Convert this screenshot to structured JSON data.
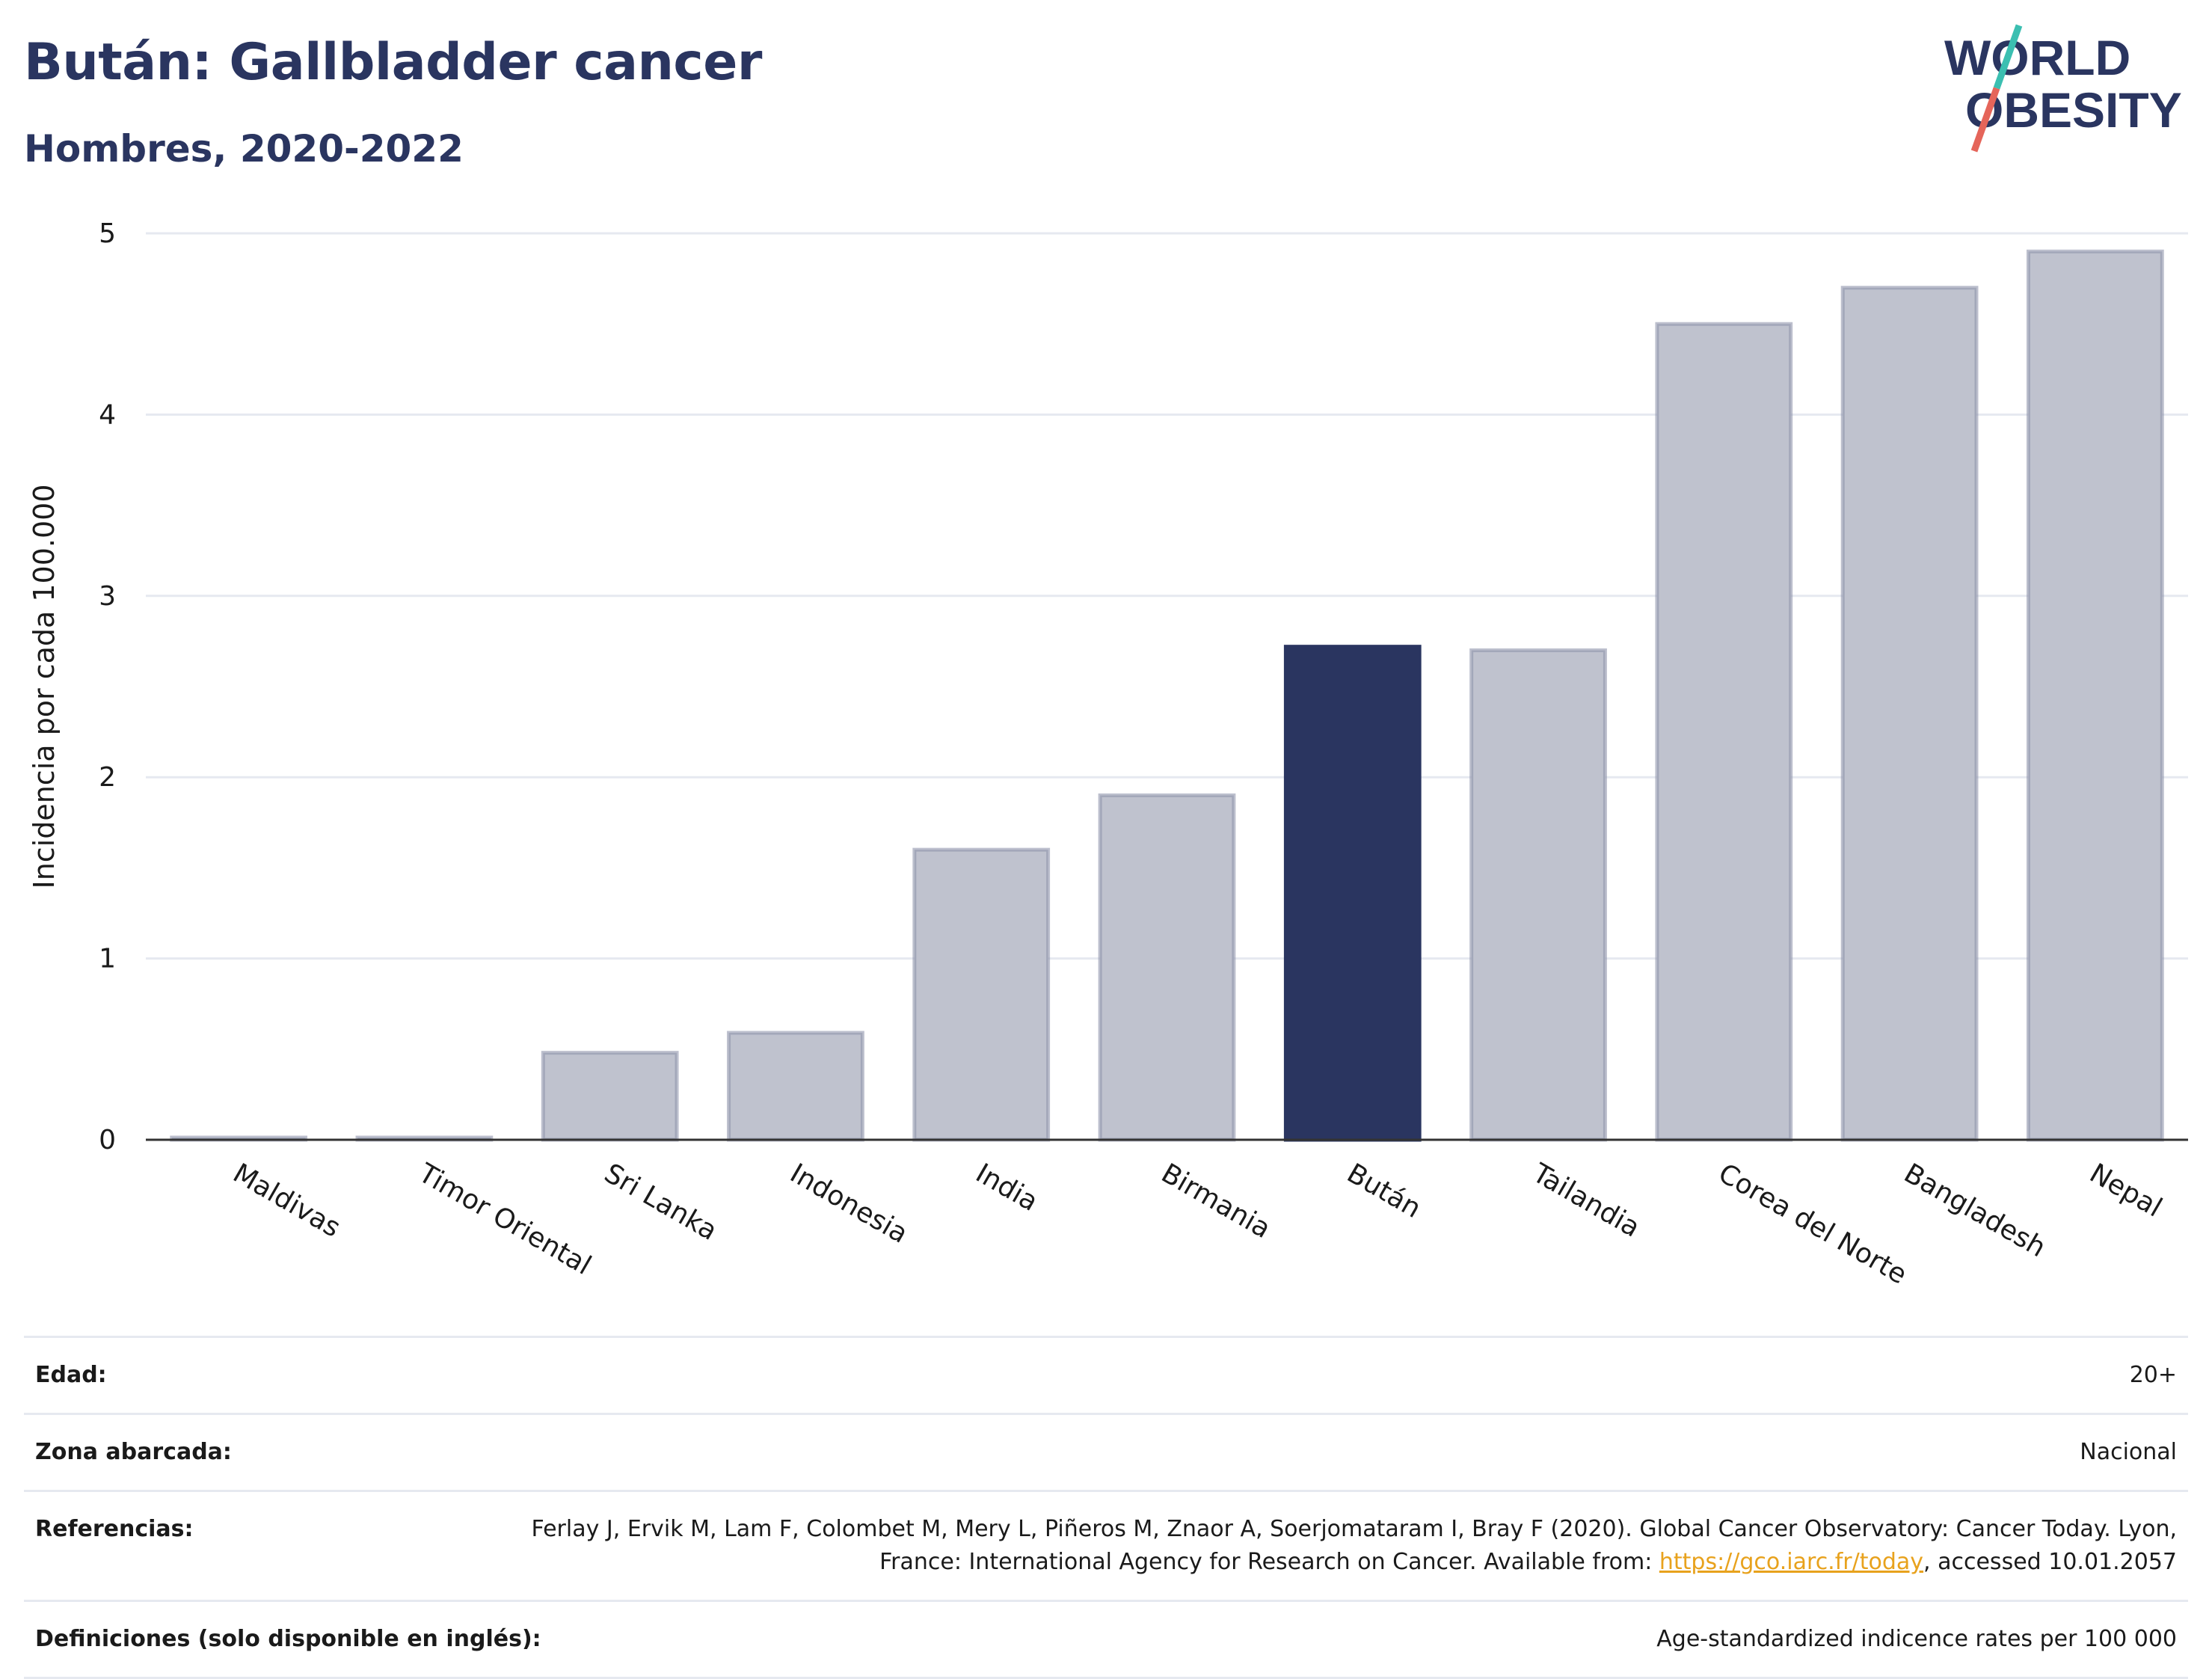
{
  "header": {
    "title": "Bután: Gallbladder cancer",
    "subtitle": "Hombres, 2020-2022"
  },
  "logo": {
    "line1": "WORLD",
    "line2": "OBESITY",
    "slash_colors": [
      "#3bbfb1",
      "#e5655a"
    ]
  },
  "chart_data": {
    "type": "bar",
    "title": "Bután: Gallbladder cancer",
    "subtitle": "Hombres, 2020-2022",
    "ylabel": "Incidencia por cada 100.000",
    "xlabel": "",
    "ylim": [
      0,
      5
    ],
    "yticks": [
      0,
      1,
      2,
      3,
      4,
      5
    ],
    "grid": true,
    "categories": [
      "Maldivas",
      "Timor Oriental",
      "Sri Lanka",
      "Indonesia",
      "India",
      "Birmania",
      "Bután",
      "Tailandia",
      "Corea del Norte",
      "Bangladesh",
      "Nepal"
    ],
    "values": [
      0.01,
      0.01,
      0.48,
      0.59,
      1.6,
      1.9,
      2.72,
      2.7,
      4.5,
      4.7,
      4.9
    ],
    "highlight": "Bután",
    "colors": {
      "default": "#bfc2ce",
      "default_border": "#8f95ab",
      "highlight": "#2a3560",
      "axis": "#333333",
      "grid": "#e6e9f0"
    }
  },
  "meta": {
    "age_label": "Edad:",
    "age_value": "20+",
    "zone_label": "Zona abarcada:",
    "zone_value": "Nacional",
    "refs_label": "Referencias:",
    "refs_text_1": "Ferlay J, Ervik M, Lam F, Colombet M, Mery L, Piñeros M, Znaor A, Soerjomataram I, Bray F (2020). Global Cancer Observatory: Cancer Today. Lyon, France: International Agency for Research on Cancer. Available from: ",
    "refs_link": "https://gco.iarc.fr/today",
    "refs_text_2": ", accessed 10.01.2057",
    "defs_label": "Definiciones (solo disponible en inglés):",
    "defs_value": "Age-standardized indicence rates per 100 000"
  }
}
